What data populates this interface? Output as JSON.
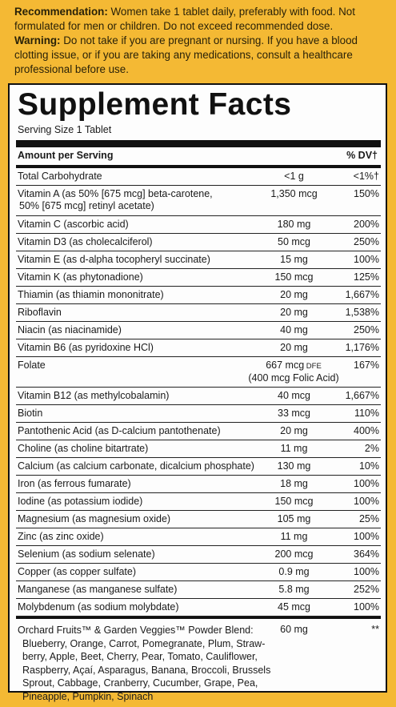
{
  "top": {
    "rec_label": "Recommendation:",
    "rec_text": " Women take 1 tablet daily, preferably with food. Not formulated for men or children. Do not exceed recommended dose.",
    "warn_label": "Warning:",
    "warn_text": " Do not take if you are pregnant or nursing. If you have a blood clotting issue, or if you are taking any medications, consult a healthcare professional before use."
  },
  "panel": {
    "title": "Supplement Facts",
    "serving_size": "Serving Size 1 Tablet",
    "amount_header": "Amount per Serving",
    "dv_header": "% DV†"
  },
  "rows": [
    {
      "name": "Total Carbohydrate",
      "amount": "<1 g",
      "dv": "<1%†"
    },
    {
      "name": "Vitamin A (as 50% [675 mcg] beta-carotene,",
      "name2": "50% [675 mcg] retinyl acetate)",
      "amount": "1,350 mcg",
      "dv": "150%"
    },
    {
      "name": "Vitamin C (ascorbic acid)",
      "amount": "180 mg",
      "dv": "200%"
    },
    {
      "name": "Vitamin D3 (as cholecalciferol)",
      "amount": "50 mcg",
      "dv": "250%"
    },
    {
      "name": "Vitamin E (as d-alpha tocopheryl succinate)",
      "amount": "15 mg",
      "dv": "100%"
    },
    {
      "name": "Vitamin K (as phytonadione)",
      "amount": "150 mcg",
      "dv": "125%"
    },
    {
      "name": "Thiamin (as thiamin mononitrate)",
      "amount": "20 mg",
      "dv": "1,667%"
    },
    {
      "name": "Riboflavin",
      "amount": "20 mg",
      "dv": "1,538%"
    },
    {
      "name": "Niacin (as niacinamide)",
      "amount": "40 mg",
      "dv": "250%"
    },
    {
      "name": "Vitamin B6 (as pyridoxine HCl)",
      "amount": "20 mg",
      "dv": "1,176%"
    },
    {
      "name": "Folate",
      "amount": "667 mcg",
      "amount_unit": "DFE",
      "amount2": "(400 mcg Folic Acid)",
      "dv": "167%"
    },
    {
      "name": "Vitamin B12 (as methylcobalamin)",
      "amount": "40 mcg",
      "dv": "1,667%"
    },
    {
      "name": "Biotin",
      "amount": "33 mcg",
      "dv": "110%"
    },
    {
      "name": "Pantothenic Acid (as D-calcium pantothenate)",
      "amount": "20 mg",
      "dv": "400%"
    },
    {
      "name": "Choline (as choline bitartrate)",
      "amount": "11 mg",
      "dv": "2%"
    },
    {
      "name": "Calcium (as calcium carbonate, dicalcium phosphate)",
      "amount": "130 mg",
      "dv": "10%"
    },
    {
      "name": "Iron (as ferrous fumarate)",
      "amount": "18 mg",
      "dv": "100%"
    },
    {
      "name": "Iodine (as potassium iodide)",
      "amount": "150 mcg",
      "dv": "100%"
    },
    {
      "name": "Magnesium (as magnesium oxide)",
      "amount": "105 mg",
      "dv": "25%"
    },
    {
      "name": "Zinc (as zinc oxide)",
      "amount": "11 mg",
      "dv": "100%"
    },
    {
      "name": "Selenium (as sodium selenate)",
      "amount": "200 mcg",
      "dv": "364%"
    },
    {
      "name": "Copper (as copper sulfate)",
      "amount": "0.9 mg",
      "dv": "100%"
    },
    {
      "name": "Manganese (as manganese sulfate)",
      "amount": "5.8 mg",
      "dv": "252%"
    },
    {
      "name": "Molybdenum (as sodium molybdate)",
      "amount": "45 mcg",
      "dv": "100%"
    }
  ],
  "blend": {
    "lines": [
      "Orchard Fruits™ & Garden Veggies™ Powder Blend:",
      "Blueberry, Orange, Carrot, Pomegranate, Plum, Straw-",
      "berry, Apple, Beet, Cherry, Pear, Tomato, Cauliflower,",
      "Raspberry, Açaí, Asparagus, Banana, Broccoli, Brussels",
      "Sprout, Cabbage, Cranberry, Cucumber, Grape, Pea,",
      "Pineapple, Pumpkin, Spinach"
    ],
    "amount": "60 mg",
    "dv": "**"
  }
}
